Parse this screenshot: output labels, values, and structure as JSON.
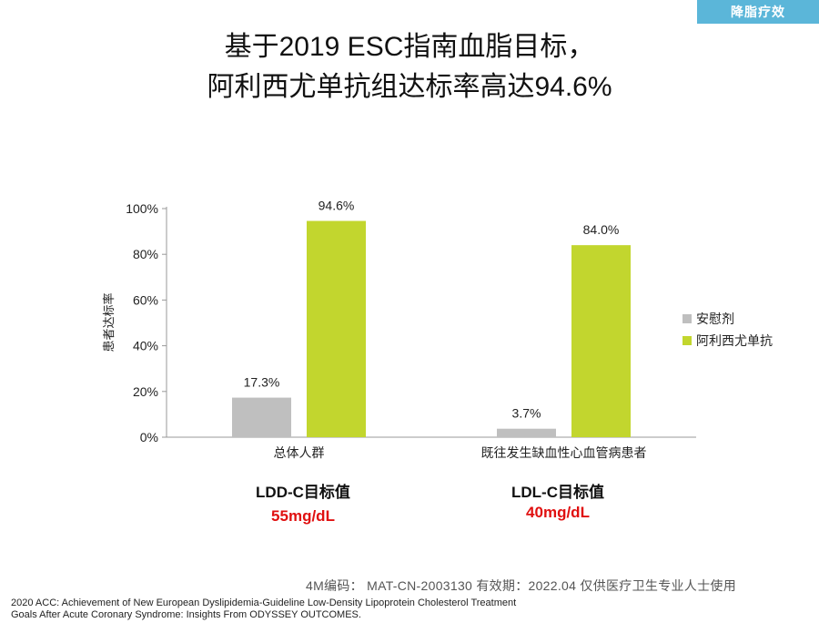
{
  "tag": "降脂疗效",
  "title_lines": [
    "基于2019 ESC指南血脂目标，",
    "阿利西尤单抗组达标率高达94.6%"
  ],
  "chart_data": {
    "type": "bar",
    "title": "",
    "xlabel": "",
    "ylabel": "患者达标率",
    "ylim": [
      0,
      100
    ],
    "ticks": [
      0,
      20,
      40,
      60,
      80,
      100
    ],
    "tick_labels": [
      "0%",
      "20%",
      "40%",
      "60%",
      "80%",
      "100%"
    ],
    "categories": [
      "总体人群",
      "既往发生缺血性心血管病患者"
    ],
    "series": [
      {
        "name": "安慰剂",
        "color": "#bfbfbf",
        "values": [
          17.3,
          3.7
        ],
        "labels": [
          "17.3%",
          "3.7%"
        ]
      },
      {
        "name": "阿利西尤单抗",
        "color": "#c2d62e",
        "values": [
          94.6,
          84.0
        ],
        "labels": [
          "94.6%",
          "84.0%"
        ]
      }
    ],
    "legend": "right"
  },
  "targets": [
    {
      "label": "LDD-C目标值",
      "value": "55mg/dL"
    },
    {
      "label": "LDL-C目标值",
      "value": "40mg/dL"
    }
  ],
  "code_line": "4M编码：  MAT-CN-2003130  有效期：2022.04  仅供医疗卫生专业人士使用",
  "reference": "2020 ACC: Achievement of New European Dyslipidemia-Guideline Low-Density Lipoprotein Cholesterol Treatment Goals After Acute Coronary Syndrome: Insights From ODYSSEY OUTCOMES."
}
